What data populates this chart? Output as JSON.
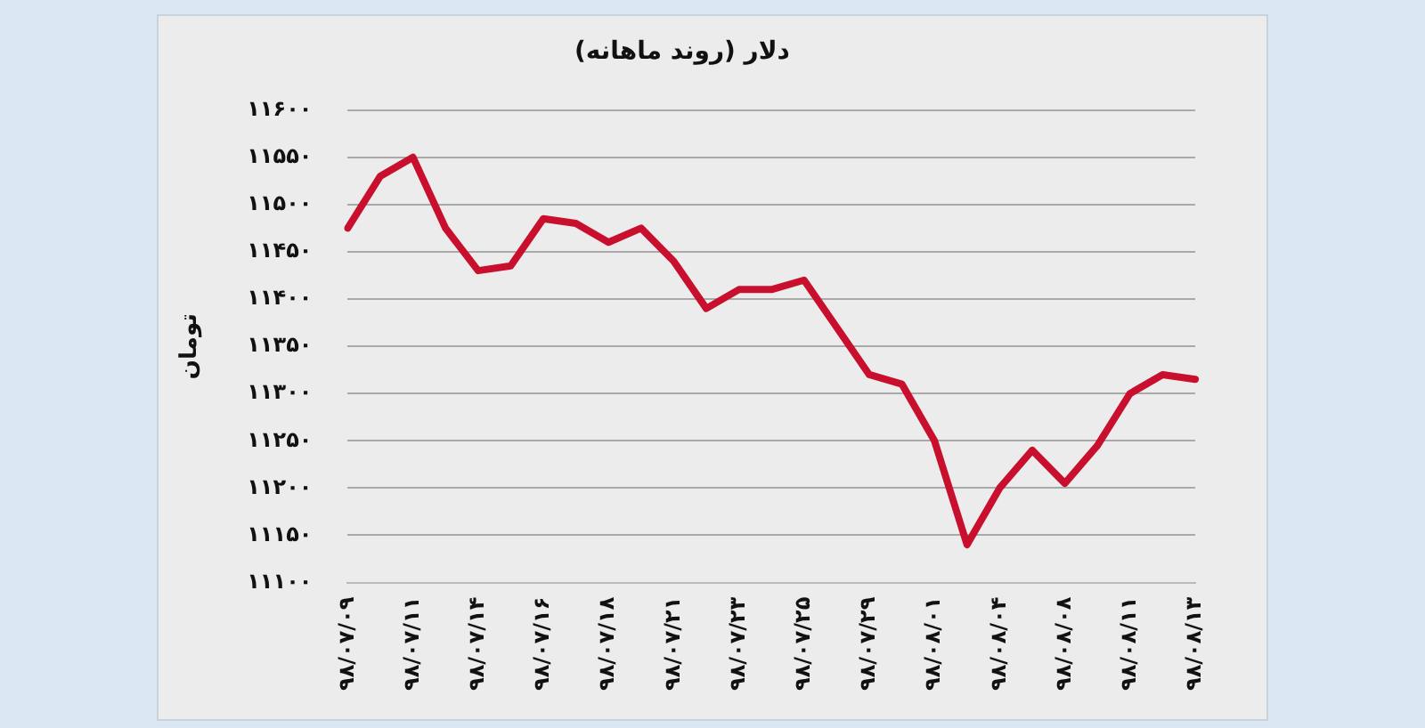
{
  "chart_data": {
    "type": "line",
    "title": "دلار (روند ماهانه)",
    "ylabel": "تومان",
    "categories": [
      "۹۸/۰۷/۰۹",
      null,
      "۹۸/۰۷/۱۱",
      null,
      "۹۸/۰۷/۱۴",
      null,
      "۹۸/۰۷/۱۶",
      null,
      "۹۸/۰۷/۱۸",
      null,
      "۹۸/۰۷/۲۱",
      null,
      "۹۸/۰۷/۲۳",
      null,
      "۹۸/۰۷/۲۵",
      null,
      "۹۸/۰۷/۲۹",
      null,
      "۹۸/۰۸/۰۱",
      null,
      "۹۸/۰۸/۰۴",
      null,
      "۹۸/۰۸/۰۸",
      null,
      "۹۸/۰۸/۱۱",
      null,
      "۹۸/۰۸/۱۳"
    ],
    "series": [
      {
        "color": "#c8102e",
        "values": [
          11475,
          11530,
          11550,
          11475,
          11430,
          11435,
          11485,
          11480,
          11460,
          11475,
          11440,
          11390,
          11410,
          11410,
          11420,
          11370,
          11320,
          11310,
          11250,
          11140,
          11200,
          11240,
          11205,
          11245,
          11300,
          11320,
          11315
        ]
      }
    ],
    "ylim": [
      11100,
      11600
    ],
    "yticks": [
      {
        "value": 11100,
        "label": "۱۱۱۰۰"
      },
      {
        "value": 11150,
        "label": "۱۱۱۵۰"
      },
      {
        "value": 11200,
        "label": "۱۱۲۰۰"
      },
      {
        "value": 11250,
        "label": "۱۱۲۵۰"
      },
      {
        "value": 11300,
        "label": "۱۱۳۰۰"
      },
      {
        "value": 11350,
        "label": "۱۱۳۵۰"
      },
      {
        "value": 11400,
        "label": "۱۱۴۰۰"
      },
      {
        "value": 11450,
        "label": "۱۱۴۵۰"
      },
      {
        "value": 11500,
        "label": "۱۱۵۰۰"
      },
      {
        "value": 11550,
        "label": "۱۱۵۵۰"
      },
      {
        "value": 11600,
        "label": "۱۱۶۰۰"
      }
    ],
    "grid": "y",
    "legend": false,
    "marker": "none",
    "line_style": "solid"
  }
}
